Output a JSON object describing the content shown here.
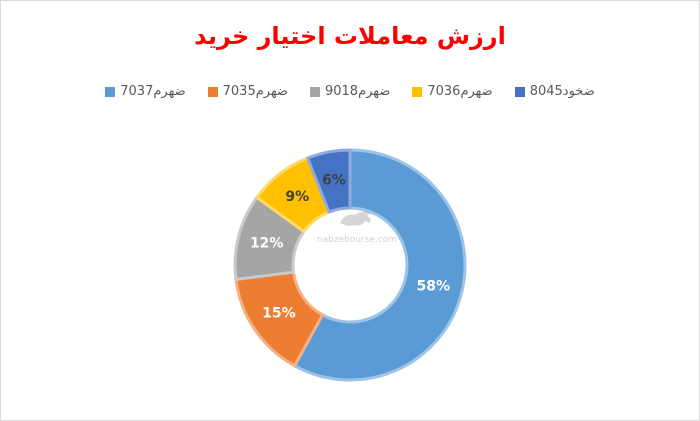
{
  "chart_data": {
    "type": "donut",
    "title": "ارزش معاملات اختیار خرید",
    "legend_position": "top",
    "categories": [
      "ضهرم7037",
      "ضهرم7035",
      "ضهرم9018",
      "ضهرم7036",
      "ضخود8045"
    ],
    "values": [
      58,
      15,
      12,
      9,
      6
    ],
    "labels": [
      "58%",
      "15%",
      "12%",
      "9%",
      "6%"
    ],
    "colors": [
      "#5b9bd5",
      "#ed7d31",
      "#a5a5a5",
      "#ffc000",
      "#4472c4"
    ],
    "borders": [
      "#9dc3e6",
      "#f4b183",
      "#c9c9c9",
      "#ffd966",
      "#8faadc"
    ]
  },
  "watermark": {
    "icon": "bull-icon",
    "site": "nabzebourse.com"
  }
}
